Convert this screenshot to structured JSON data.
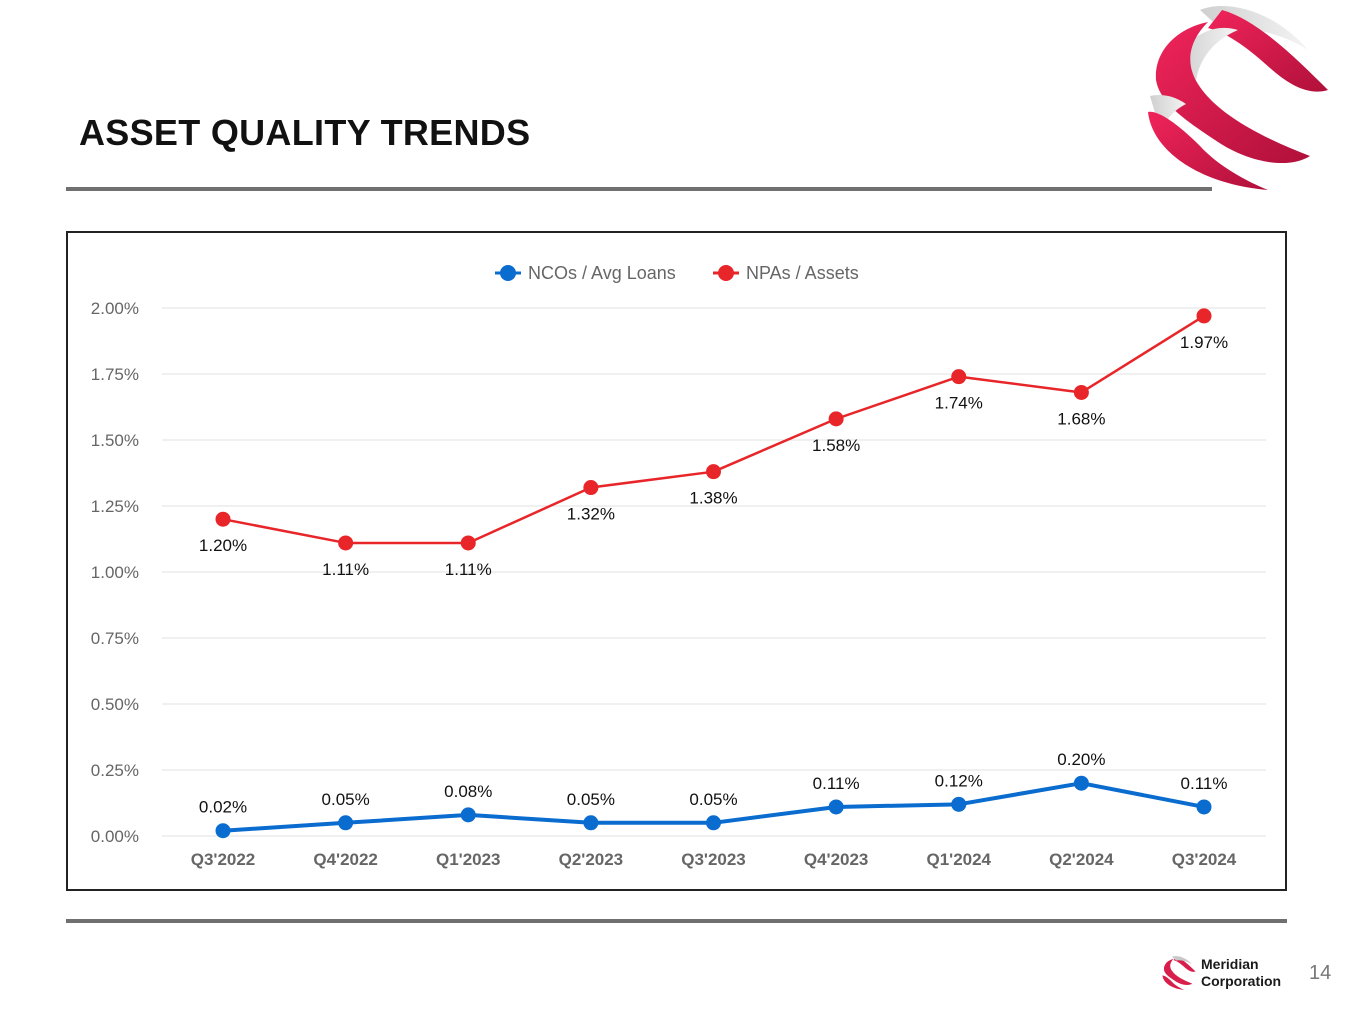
{
  "slide": {
    "title": "ASSET QUALITY TRENDS",
    "company_line1": "Meridian",
    "company_line2": "Corporation",
    "page_number": "14"
  },
  "colors": {
    "ncos": "#0a6ccf",
    "npas": "#e8262a",
    "grid": "#e2e2e2",
    "axis_text": "#666666",
    "brand": "#d81e4a"
  },
  "chart_data": {
    "type": "line",
    "title": "",
    "xlabel": "",
    "ylabel": "",
    "ylim": [
      0,
      2.0
    ],
    "y_ticks": [
      0,
      0.25,
      0.5,
      0.75,
      1.0,
      1.25,
      1.5,
      1.75,
      2.0
    ],
    "y_tick_labels": [
      "0.00%",
      "0.25%",
      "0.50%",
      "0.75%",
      "1.00%",
      "1.25%",
      "1.50%",
      "1.75%",
      "2.00%"
    ],
    "grid": true,
    "legend_position": "top-center",
    "categories": [
      "Q3'2022",
      "Q4'2022",
      "Q1'2023",
      "Q2'2023",
      "Q3'2023",
      "Q4'2023",
      "Q1'2024",
      "Q2'2024",
      "Q3'2024"
    ],
    "series": [
      {
        "name": "NCOs / Avg Loans",
        "color": "#0a6ccf",
        "values": [
          0.02,
          0.05,
          0.08,
          0.05,
          0.05,
          0.11,
          0.12,
          0.2,
          0.11
        ],
        "labels": [
          "0.02%",
          "0.05%",
          "0.08%",
          "0.05%",
          "0.05%",
          "0.11%",
          "0.12%",
          "0.20%",
          "0.11%"
        ],
        "label_position": "above"
      },
      {
        "name": "NPAs / Assets",
        "color": "#e8262a",
        "values": [
          1.2,
          1.11,
          1.11,
          1.32,
          1.38,
          1.58,
          1.74,
          1.68,
          1.97
        ],
        "labels": [
          "1.20%",
          "1.11%",
          "1.11%",
          "1.32%",
          "1.38%",
          "1.58%",
          "1.74%",
          "1.68%",
          "1.97%"
        ],
        "label_position": "below"
      }
    ]
  }
}
